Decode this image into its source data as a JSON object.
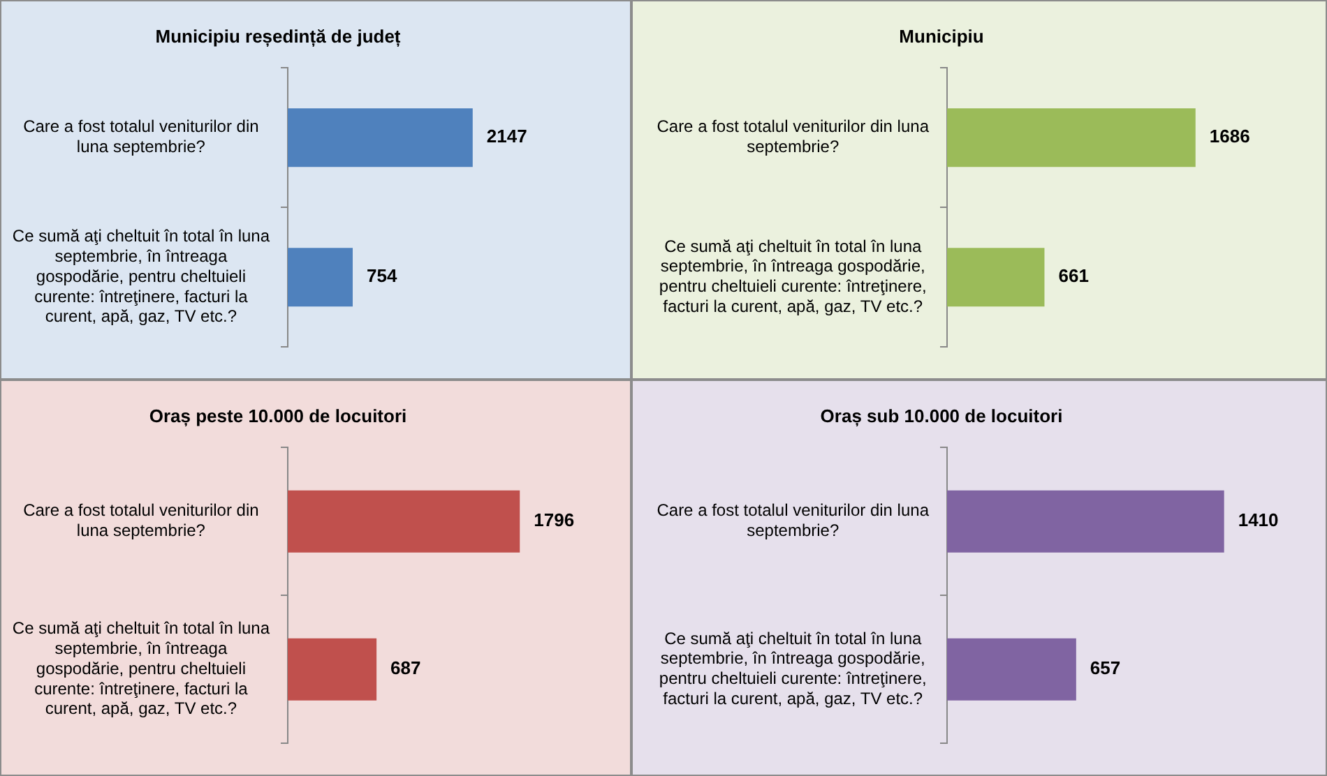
{
  "chart_data": [
    {
      "type": "bar",
      "orientation": "horizontal",
      "title": "Municipiu reședință de județ",
      "categories": [
        "Care a fost totalul veniturilor din luna septembrie?",
        "Ce sumă aţi cheltuit în total în luna septembrie, în întreaga gospodărie, pentru cheltuieli curente: întreţinere, facturi la curent, apă, gaz, TV etc.?"
      ],
      "values": [
        2147,
        754
      ],
      "color": "#4f81bd",
      "data_labels": true,
      "tick_labels": "y",
      "grid": false,
      "legend": false
    },
    {
      "type": "bar",
      "orientation": "horizontal",
      "title": "Municipiu",
      "categories": [
        "Care a fost totalul veniturilor din luna septembrie?",
        "Ce sumă aţi cheltuit în total în luna septembrie, în întreaga gospodărie, pentru cheltuieli curente: întreţinere, facturi la curent, apă, gaz, TV etc.?"
      ],
      "values": [
        1686,
        661
      ],
      "color": "#9bbb59",
      "data_labels": true,
      "tick_labels": "y",
      "grid": false,
      "legend": false
    },
    {
      "type": "bar",
      "orientation": "horizontal",
      "title": "Oraș peste 10.000 de locuitori",
      "categories": [
        "Care a fost totalul veniturilor din luna septembrie?",
        "Ce sumă aţi cheltuit în total în luna septembrie, în întreaga gospodărie, pentru cheltuieli curente: întreţinere, facturi la curent, apă, gaz, TV etc.?"
      ],
      "values": [
        1796,
        687
      ],
      "color": "#c0504d",
      "data_labels": true,
      "tick_labels": "y",
      "grid": false,
      "legend": false
    },
    {
      "type": "bar",
      "orientation": "horizontal",
      "title": "Oraș sub 10.000 de locuitori",
      "categories": [
        "Care a fost totalul veniturilor din luna septembrie?",
        "Ce sumă aţi cheltuit în total în luna septembrie, în întreaga gospodărie, pentru cheltuieli curente: întreţinere, facturi la curent, apă, gaz, TV etc.?"
      ],
      "values": [
        1410,
        657
      ],
      "color": "#8064a2",
      "data_labels": true,
      "tick_labels": "y",
      "grid": false,
      "legend": false
    }
  ]
}
